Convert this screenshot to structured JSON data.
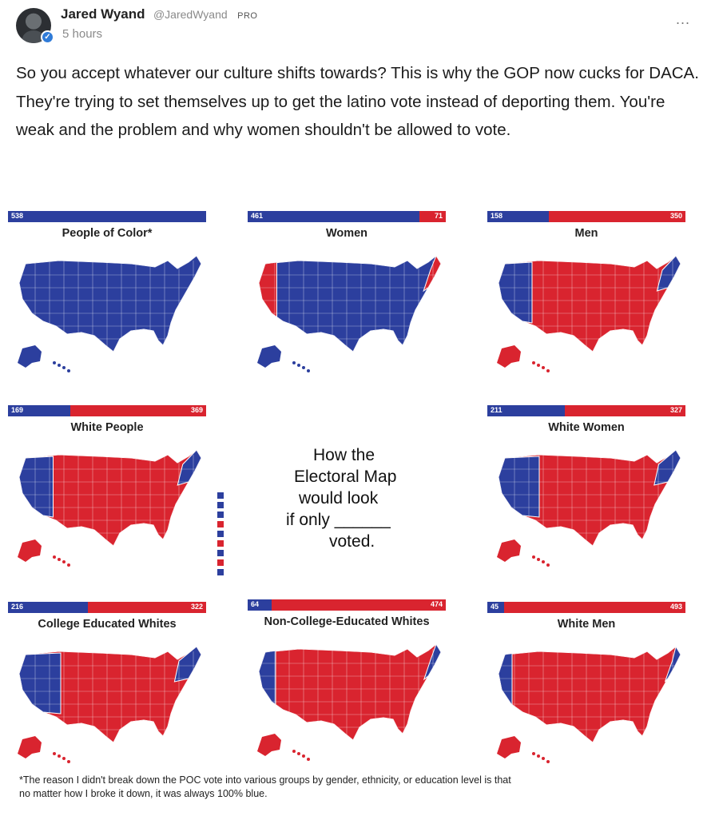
{
  "author": {
    "name": "Jared Wyand",
    "handle": "@JaredWyand",
    "badge": "PRO",
    "time": "5 hours"
  },
  "menu": {
    "more_label": "..."
  },
  "post": {
    "text": "So you accept whatever our culture shifts towards? This is why the GOP now cucks for DACA. They're trying to set themselves up to get the latino vote instead of deporting them. You're weak and the problem and why women shouldn't be allowed to vote."
  },
  "colors": {
    "blue": "#2c3f9e",
    "red": "#d9242f",
    "accent": "#2f7bd8"
  },
  "image": {
    "caption_lines": [
      "How the",
      "Electoral Map",
      "would look",
      "if only ______",
      "voted."
    ],
    "footnote": "*The reason I didn't break down the POC vote into various groups by gender, ethnicity, or education level is that no matter how I broke it down, it was always 100% blue.",
    "panels": [
      {
        "title": "People of Color*",
        "blue": 538,
        "red": 0,
        "blue_label": "538",
        "red_label": ""
      },
      {
        "title": "Women",
        "blue": 461,
        "red": 71,
        "blue_label": "461",
        "red_label": "71"
      },
      {
        "title": "Men",
        "blue": 158,
        "red": 350,
        "blue_label": "158",
        "red_label": "350"
      },
      {
        "title": "White People",
        "blue": 169,
        "red": 369,
        "blue_label": "169",
        "red_label": "369"
      },
      {
        "title": "White Women",
        "blue": 211,
        "red": 327,
        "blue_label": "211",
        "red_label": "327"
      },
      {
        "title": "College Educated Whites",
        "blue": 216,
        "red": 322,
        "blue_label": "216",
        "red_label": "322"
      },
      {
        "title": "Non-College-Educated Whites",
        "blue": 64,
        "red": 474,
        "blue_label": "64",
        "red_label": "474"
      },
      {
        "title": "White Men",
        "blue": 45,
        "red": 493,
        "blue_label": "45",
        "red_label": "493"
      }
    ]
  }
}
